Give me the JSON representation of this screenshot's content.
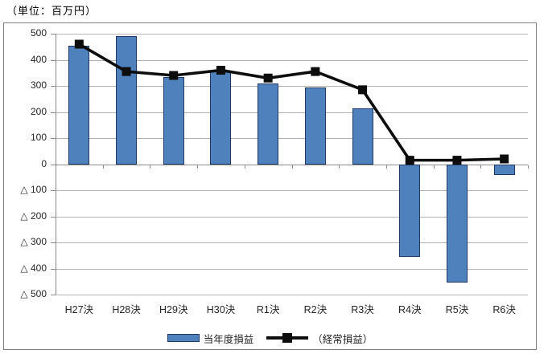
{
  "title": "（単位：百万円）",
  "legend": {
    "bar_label": "当年度損益",
    "line_label": "（経常損益）"
  },
  "colors": {
    "bar_fill": "#4f81bd",
    "bar_border": "#1f3864",
    "line": "#0d0d0d",
    "marker": "#0d0d0d",
    "grid": "#b3b3b3",
    "axis": "#8c8c8c",
    "frame_border": "#808080",
    "text": "#262626"
  },
  "chart_data": {
    "type": "bar",
    "title": "（単位：百万円）",
    "categories": [
      "H27決",
      "H28決",
      "H29決",
      "H30決",
      "R1決",
      "R2決",
      "R3決",
      "R4決",
      "R5決",
      "R6決"
    ],
    "series": [
      {
        "name": "当年度損益",
        "type": "bar",
        "values": [
          455,
          490,
          335,
          355,
          310,
          295,
          215,
          -355,
          -455,
          -40
        ]
      },
      {
        "name": "（経常損益）",
        "type": "line",
        "values": [
          460,
          355,
          340,
          360,
          330,
          355,
          285,
          15,
          15,
          20
        ]
      }
    ],
    "xlabel": "",
    "ylabel": "",
    "ylim": [
      -500,
      500
    ],
    "ytick_step": 100,
    "ytick_labels": [
      "500",
      "400",
      "300",
      "200",
      "100",
      "0",
      "△ 100",
      "△ 200",
      "△ 300",
      "△ 400",
      "△ 500"
    ],
    "grid": true,
    "legend_position": "bottom",
    "negative_format": "triangle"
  }
}
